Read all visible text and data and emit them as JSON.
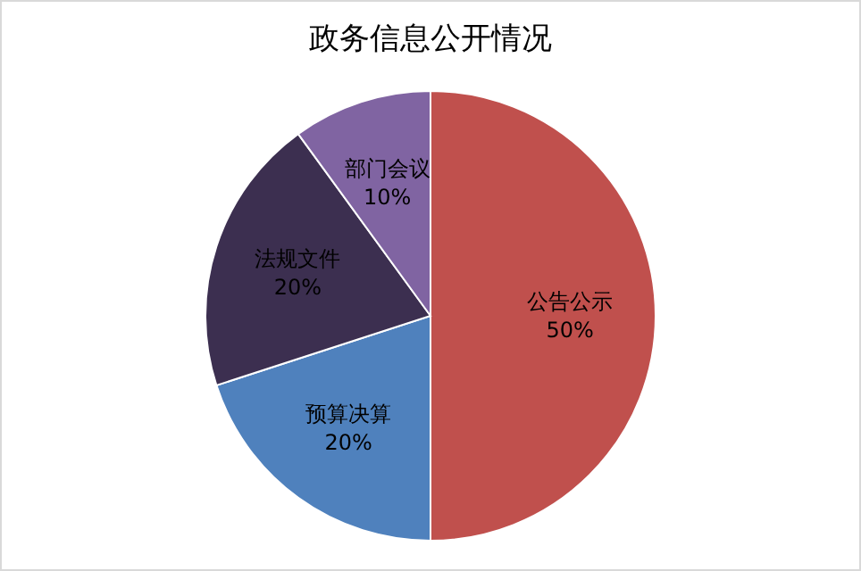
{
  "chart_data": {
    "type": "pie",
    "title": "政务信息公开情况",
    "categories": [
      "公告公示",
      "预算决算",
      "法规文件",
      "部门会议"
    ],
    "values": [
      50,
      20,
      20,
      10
    ],
    "value_labels": [
      "50%",
      "20%",
      "20%",
      "10%"
    ],
    "colors": [
      "#c0504d",
      "#4f81bd",
      "#3c2f50",
      "#8064a2"
    ]
  }
}
